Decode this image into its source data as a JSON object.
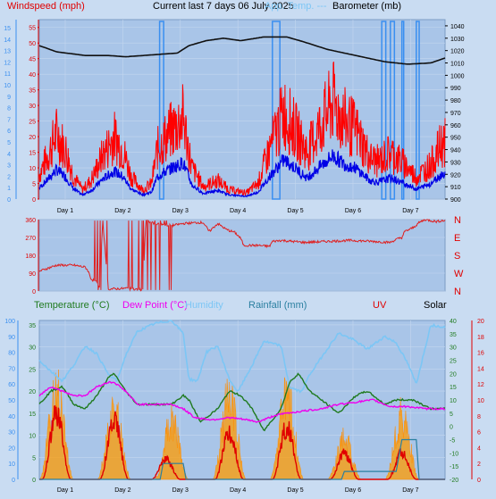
{
  "header": {
    "wind_label": "Windspeed (mph)",
    "title": "Current last 7 days 06 July 2025",
    "app_temp_label": "App. Temp. ---",
    "baro_label": "Barometer (mb)"
  },
  "legend2": {
    "temperature": "Temperature (°C)",
    "dewpoint": "Dew Point (°C)",
    "humidity": "Humidity",
    "rainfall": "Rainfall (mm)",
    "uv": "UV",
    "solar": "Solar"
  },
  "colors": {
    "background": "#c9dcf2",
    "plot_bg": "#a9c5e8",
    "wind_gust": "#ff0000",
    "wind_avg": "#0000e6",
    "direction_marks": "#3a8ff0",
    "barometer": "#111111",
    "wind_dir": "#e02020",
    "temperature": "#1f7a1f",
    "dewpoint": "#ee00ee",
    "humidity": "#7cc6f5",
    "rainfall": "#2a7fa0",
    "uv": "#e00000",
    "solar": "#ff9a00"
  },
  "chart_data": [
    {
      "type": "line",
      "name": "wind-barometer",
      "x_ticks": [
        "Day 1",
        "Day 2",
        "Day 3",
        "Day 4",
        "Day 5",
        "Day 6",
        "Day 7"
      ],
      "x_range_days": [
        0,
        7.05
      ],
      "y_left": {
        "label": "Windspeed (mph)",
        "ticks": [
          0,
          5,
          10,
          15,
          20,
          25,
          30,
          35,
          40,
          45,
          50,
          55
        ],
        "range": [
          0,
          57.5
        ]
      },
      "y_outer": {
        "ticks": [
          0,
          1,
          2,
          3,
          4,
          5,
          6,
          7,
          8,
          9,
          10,
          11,
          12,
          13,
          14,
          15
        ],
        "range": [
          0,
          15.7
        ]
      },
      "y_right": {
        "label": "Barometer (mb)",
        "ticks": [
          900,
          910,
          920,
          930,
          940,
          950,
          960,
          970,
          980,
          990,
          1000,
          1010,
          1020,
          1030,
          1040
        ],
        "range": [
          900,
          1045
        ]
      },
      "gust_profile": [
        [
          0,
          8
        ],
        [
          0.15,
          14
        ],
        [
          0.3,
          21
        ],
        [
          0.45,
          16
        ],
        [
          0.6,
          7
        ],
        [
          0.75,
          3
        ],
        [
          0.9,
          6
        ],
        [
          1.1,
          14
        ],
        [
          1.3,
          20
        ],
        [
          1.45,
          16
        ],
        [
          1.6,
          7
        ],
        [
          1.8,
          3
        ],
        [
          1.95,
          5
        ],
        [
          2.05,
          16
        ],
        [
          2.25,
          21
        ],
        [
          2.5,
          26
        ],
        [
          2.65,
          10
        ],
        [
          2.85,
          4
        ],
        [
          3.1,
          6
        ],
        [
          3.3,
          3
        ],
        [
          3.6,
          2
        ],
        [
          3.8,
          5
        ],
        [
          4.0,
          16
        ],
        [
          4.25,
          28
        ],
        [
          4.45,
          22
        ],
        [
          4.65,
          15
        ],
        [
          4.9,
          24
        ],
        [
          5.1,
          31
        ],
        [
          5.3,
          25
        ],
        [
          5.5,
          22
        ],
        [
          5.75,
          13
        ],
        [
          5.9,
          12
        ],
        [
          6.1,
          15
        ],
        [
          6.35,
          11
        ],
        [
          6.55,
          7
        ],
        [
          6.8,
          11
        ],
        [
          7.0,
          18
        ]
      ],
      "avg_ratio": 0.45,
      "barometer": [
        [
          0,
          1024
        ],
        [
          0.3,
          1019
        ],
        [
          0.8,
          1016
        ],
        [
          1.2,
          1016
        ],
        [
          1.5,
          1015
        ],
        [
          1.8,
          1016
        ],
        [
          2.1,
          1017
        ],
        [
          2.4,
          1018
        ],
        [
          2.6,
          1024
        ],
        [
          2.9,
          1028
        ],
        [
          3.2,
          1030
        ],
        [
          3.5,
          1028
        ],
        [
          3.9,
          1031
        ],
        [
          4.3,
          1031
        ],
        [
          4.6,
          1027
        ],
        [
          5.0,
          1021
        ],
        [
          5.5,
          1016
        ],
        [
          6.0,
          1011
        ],
        [
          6.4,
          1009
        ],
        [
          6.8,
          1010
        ],
        [
          7.05,
          1014
        ]
      ],
      "dir_marks": [
        [
          2.09,
          2.16
        ],
        [
          4.05,
          4.18
        ],
        [
          5.95,
          6.02
        ],
        [
          6.1,
          6.17
        ],
        [
          6.3,
          6.32
        ],
        [
          6.55,
          6.6
        ]
      ]
    },
    {
      "type": "line",
      "name": "wind-direction",
      "y_ticks": [
        0,
        90,
        180,
        270,
        360
      ],
      "y_labels_right": [
        "N",
        "W",
        "S",
        "E",
        "N"
      ],
      "y_range": [
        0,
        360
      ],
      "series": [
        [
          0,
          100
        ],
        [
          0.3,
          130
        ],
        [
          0.6,
          130
        ],
        [
          0.8,
          120
        ],
        [
          0.85,
          100
        ],
        [
          0.9,
          60
        ],
        [
          1.0,
          45
        ],
        [
          1.05,
          20
        ],
        [
          1.1,
          355
        ],
        [
          1.2,
          10
        ],
        [
          1.4,
          12
        ],
        [
          1.6,
          15
        ],
        [
          1.8,
          5
        ],
        [
          1.85,
          355
        ],
        [
          2.0,
          340
        ],
        [
          2.3,
          330
        ],
        [
          2.5,
          340
        ],
        [
          2.75,
          345
        ],
        [
          2.85,
          345
        ],
        [
          2.95,
          300
        ],
        [
          3.1,
          340
        ],
        [
          3.25,
          310
        ],
        [
          3.4,
          295
        ],
        [
          3.5,
          265
        ],
        [
          3.55,
          230
        ],
        [
          3.6,
          230
        ],
        [
          3.8,
          230
        ],
        [
          4.0,
          225
        ],
        [
          4.05,
          250
        ],
        [
          4.2,
          255
        ],
        [
          4.6,
          245
        ],
        [
          5.0,
          250
        ],
        [
          5.4,
          255
        ],
        [
          5.8,
          250
        ],
        [
          6.1,
          245
        ],
        [
          6.2,
          260
        ],
        [
          6.3,
          270
        ],
        [
          6.35,
          300
        ],
        [
          6.5,
          320
        ],
        [
          6.6,
          345
        ],
        [
          6.7,
          360
        ],
        [
          6.9,
          350
        ],
        [
          7.0,
          355
        ]
      ],
      "flip_bands": [
        [
          0.95,
          1.2
        ],
        [
          1.55,
          1.95
        ],
        [
          2.0,
          2.3
        ]
      ]
    },
    {
      "type": "line",
      "name": "temperature-humidity-rain-uv-solar",
      "y_left_outer": {
        "ticks": [
          0,
          10,
          20,
          30,
          40,
          50,
          60,
          70,
          80,
          90,
          100
        ],
        "range": [
          0,
          100
        ]
      },
      "y_left": {
        "ticks": [
          0,
          5,
          10,
          15,
          20,
          25,
          30,
          35
        ],
        "range": [
          0,
          36
        ]
      },
      "y_right_inner": {
        "ticks": [
          -20,
          -15,
          -10,
          -5,
          0,
          5,
          10,
          15,
          20,
          25,
          30,
          35,
          40
        ],
        "range": [
          -20,
          40
        ]
      },
      "y_right": {
        "ticks": [
          0,
          2,
          4,
          6,
          8,
          10,
          12,
          14,
          16,
          18,
          20
        ],
        "range": [
          0,
          20
        ]
      },
      "temperature": [
        [
          0,
          17
        ],
        [
          0.2,
          20
        ],
        [
          0.4,
          21
        ],
        [
          0.6,
          17
        ],
        [
          0.8,
          16
        ],
        [
          1.0,
          19
        ],
        [
          1.2,
          23
        ],
        [
          1.3,
          24
        ],
        [
          1.5,
          20
        ],
        [
          1.7,
          17
        ],
        [
          2.0,
          17
        ],
        [
          2.3,
          17
        ],
        [
          2.5,
          19
        ],
        [
          2.6,
          18
        ],
        [
          2.8,
          13
        ],
        [
          3.1,
          16
        ],
        [
          3.3,
          20
        ],
        [
          3.5,
          19
        ],
        [
          3.7,
          16
        ],
        [
          3.9,
          11
        ],
        [
          4.2,
          16
        ],
        [
          4.35,
          22
        ],
        [
          4.5,
          24
        ],
        [
          4.7,
          20
        ],
        [
          5.0,
          17
        ],
        [
          5.2,
          15
        ],
        [
          5.5,
          19
        ],
        [
          5.7,
          20
        ],
        [
          6.0,
          17
        ],
        [
          6.2,
          18
        ],
        [
          6.5,
          18
        ],
        [
          6.8,
          16
        ],
        [
          7.05,
          16
        ]
      ],
      "dewpoint": [
        [
          0,
          19
        ],
        [
          0.2,
          21
        ],
        [
          0.4,
          20
        ],
        [
          0.6,
          19
        ],
        [
          0.8,
          19
        ],
        [
          1.0,
          21
        ],
        [
          1.2,
          22
        ],
        [
          1.3,
          22
        ],
        [
          1.5,
          20
        ],
        [
          1.7,
          17
        ],
        [
          2.0,
          17
        ],
        [
          2.3,
          17
        ],
        [
          2.5,
          16
        ],
        [
          2.7,
          14
        ],
        [
          3.0,
          13.5
        ],
        [
          3.3,
          14
        ],
        [
          3.6,
          13.5
        ],
        [
          3.8,
          13
        ],
        [
          4.1,
          14.5
        ],
        [
          4.3,
          15
        ],
        [
          4.6,
          15.5
        ],
        [
          4.9,
          16
        ],
        [
          5.2,
          17
        ],
        [
          5.5,
          17.5
        ],
        [
          5.8,
          18
        ],
        [
          6.1,
          16.5
        ],
        [
          6.4,
          16.5
        ],
        [
          6.7,
          16
        ],
        [
          7.05,
          16
        ]
      ],
      "humidity": [
        [
          0,
          75
        ],
        [
          0.2,
          68
        ],
        [
          0.4,
          62
        ],
        [
          0.6,
          72
        ],
        [
          0.8,
          84
        ],
        [
          1.0,
          79
        ],
        [
          1.2,
          66
        ],
        [
          1.35,
          62
        ],
        [
          1.5,
          78
        ],
        [
          1.7,
          93
        ],
        [
          2.0,
          98
        ],
        [
          2.3,
          100
        ],
        [
          2.5,
          92
        ],
        [
          2.6,
          63
        ],
        [
          2.75,
          62
        ],
        [
          2.9,
          80
        ],
        [
          3.1,
          84
        ],
        [
          3.3,
          63
        ],
        [
          3.45,
          55
        ],
        [
          3.7,
          72
        ],
        [
          3.9,
          87
        ],
        [
          4.2,
          84
        ],
        [
          4.35,
          58
        ],
        [
          4.55,
          55
        ],
        [
          4.7,
          66
        ],
        [
          5.0,
          82
        ],
        [
          5.2,
          92
        ],
        [
          5.45,
          88
        ],
        [
          5.7,
          82
        ],
        [
          6.0,
          90
        ],
        [
          6.2,
          86
        ],
        [
          6.4,
          73
        ],
        [
          6.55,
          60
        ],
        [
          6.8,
          97
        ],
        [
          7.05,
          96
        ]
      ],
      "uv_peaks": [
        [
          0.3,
          10
        ],
        [
          1.3,
          9
        ],
        [
          2.2,
          3
        ],
        [
          3.3,
          7
        ],
        [
          4.3,
          8
        ],
        [
          5.3,
          4
        ],
        [
          6.3,
          4
        ]
      ],
      "solar_peaks": [
        [
          0.3,
          27
        ],
        [
          1.3,
          21
        ],
        [
          2.3,
          17
        ],
        [
          3.3,
          25
        ],
        [
          4.3,
          25
        ],
        [
          5.3,
          12
        ],
        [
          6.3,
          20
        ]
      ],
      "rain_steps": [
        [
          0,
          0
        ],
        [
          2.1,
          0
        ],
        [
          2.15,
          2
        ],
        [
          2.5,
          2
        ],
        [
          2.55,
          0
        ],
        [
          4.6,
          0
        ],
        [
          5.25,
          0
        ],
        [
          5.3,
          1
        ],
        [
          5.7,
          1
        ],
        [
          6.2,
          1
        ],
        [
          6.3,
          5
        ],
        [
          6.55,
          5
        ],
        [
          6.6,
          0
        ],
        [
          7.05,
          0
        ]
      ]
    }
  ]
}
